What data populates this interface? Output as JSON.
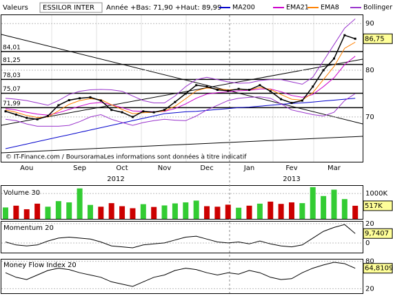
{
  "chart_data": [
    {
      "type": "line",
      "header": "Valeurs",
      "instrument": "ESSILOR INTER",
      "range_text": "Année +Bas: 71,90 +Haut: 89,99",
      "source": "© IT-Finance.com / BoursoramaLes informations sont données à titre indicatif",
      "year_labels": [
        "2012",
        "2013"
      ],
      "categories": [
        null,
        null,
        "Aou",
        null,
        null,
        null,
        null,
        "Sep",
        null,
        null,
        null,
        "Oct",
        null,
        null,
        null,
        "Nov",
        null,
        null,
        null,
        "Dec",
        null,
        null,
        null,
        "Jan",
        null,
        null,
        null,
        "Fev",
        null,
        null,
        null,
        "Mar",
        null,
        null
      ],
      "price": {
        "color": "#000000",
        "values": [
          71.2,
          70.5,
          69.8,
          69.5,
          70.2,
          72.5,
          73.6,
          74.0,
          74.2,
          73.5,
          71.5,
          71.0,
          70.0,
          71.2,
          71.0,
          71.5,
          73.2,
          75.0,
          76.8,
          76.5,
          75.8,
          75.6,
          76.0,
          75.8,
          76.8,
          75.5,
          73.8,
          73.0,
          73.5,
          76.5,
          80.0,
          82.5,
          87.5,
          86.75
        ]
      },
      "series": [
        {
          "name": "MA200",
          "color": "#0000cc",
          "values": [
            63.2,
            63.7,
            64.2,
            64.7,
            65.2,
            65.7,
            66.2,
            66.7,
            67.2,
            67.7,
            68.2,
            68.7,
            69.2,
            69.7,
            70.2,
            70.7,
            70.9,
            71.1,
            71.2,
            71.4,
            71.6,
            71.8,
            72.0,
            72.1,
            72.3,
            72.5,
            72.7,
            72.9,
            73.0,
            73.2,
            73.4,
            73.6,
            73.8,
            74.0
          ]
        },
        {
          "name": "EMA21",
          "color": "#cc00cc",
          "values": [
            71.8,
            71.5,
            71.0,
            70.6,
            70.4,
            70.9,
            71.6,
            72.3,
            72.9,
            73.1,
            72.6,
            72.0,
            71.3,
            71.2,
            71.1,
            71.2,
            71.8,
            72.8,
            74.0,
            74.9,
            75.2,
            75.4,
            75.6,
            75.7,
            76.0,
            76.0,
            75.4,
            74.6,
            74.2,
            74.8,
            76.5,
            78.4,
            81.2,
            83.0
          ]
        },
        {
          "name": "EMA8",
          "color": "#ff8000",
          "values": [
            71.5,
            71.0,
            70.3,
            69.9,
            70.0,
            71.3,
            72.7,
            73.5,
            73.9,
            73.7,
            72.6,
            71.6,
            70.7,
            70.9,
            71.0,
            71.3,
            72.3,
            73.9,
            75.6,
            76.2,
            76.0,
            75.8,
            75.9,
            75.8,
            76.3,
            75.9,
            74.8,
            73.8,
            73.6,
            75.2,
            78.0,
            80.8,
            84.7,
            86.0
          ]
        },
        {
          "name": "Bollinger 20",
          "color": "#9933cc",
          "upper": [
            74.0,
            73.8,
            73.5,
            73.0,
            72.5,
            73.5,
            74.8,
            75.5,
            75.8,
            75.9,
            75.8,
            75.5,
            74.5,
            73.5,
            73.0,
            73.0,
            74.5,
            76.5,
            78.0,
            78.5,
            78.0,
            77.5,
            77.2,
            77.3,
            77.8,
            78.0,
            78.0,
            77.5,
            77.0,
            78.5,
            82.0,
            85.5,
            89.0,
            91.0
          ],
          "lower": [
            69.5,
            69.2,
            68.5,
            68.0,
            68.0,
            68.0,
            68.2,
            69.0,
            70.0,
            70.5,
            69.5,
            68.8,
            68.2,
            68.8,
            69.2,
            69.5,
            69.3,
            69.2,
            70.2,
            71.5,
            72.5,
            73.5,
            74.0,
            74.2,
            74.3,
            74.0,
            72.8,
            71.5,
            71.0,
            70.5,
            70.2,
            71.0,
            73.5,
            75.0
          ]
        }
      ],
      "levels": [
        {
          "value": 84.01,
          "label": "84,01"
        },
        {
          "value": 81.25,
          "label": "81,25"
        },
        {
          "value": 78.03,
          "label": "78,03"
        },
        {
          "value": 75.07,
          "label": "75,07"
        },
        {
          "value": 71.99,
          "label": "71,99"
        }
      ],
      "last": {
        "value": 86.75,
        "label": "86,75"
      },
      "ylim": [
        60.4,
        91.8
      ],
      "yticks": [
        70,
        80,
        90
      ]
    },
    {
      "type": "bar",
      "title": "Volume 30",
      "values": [
        450,
        520,
        380,
        600,
        480,
        700,
        650,
        1200,
        550,
        480,
        620,
        500,
        420,
        580,
        470,
        530,
        610,
        650,
        720,
        500,
        480,
        560,
        440,
        520,
        600,
        680,
        590,
        650,
        620,
        1250,
        900,
        1150,
        780,
        517
      ],
      "up_color": "#33cc33",
      "down_color": "#cc0000",
      "last": {
        "value": 517,
        "label": "517K"
      },
      "ylim": [
        0,
        1300
      ],
      "yticks": [
        {
          "value": 1000,
          "label": "1000K"
        }
      ]
    },
    {
      "type": "line",
      "title": "Momentum 20",
      "color": "#000000",
      "values": [
        1,
        -2,
        -3,
        -2,
        2,
        5,
        6,
        5,
        4,
        1,
        -3,
        -4,
        -5,
        -2,
        -1,
        0,
        3,
        6,
        7,
        4,
        1,
        0,
        1,
        -1,
        2,
        -1,
        -3,
        -4,
        -2,
        5,
        12,
        16,
        19,
        9.7407
      ],
      "last": {
        "value": 9.7407,
        "label": "9,7407"
      },
      "ylim": [
        -10,
        22
      ],
      "yticks": [
        0,
        20
      ]
    },
    {
      "type": "line",
      "title": "Money Flow Index 20",
      "color": "#000000",
      "values": [
        55,
        45,
        40,
        50,
        60,
        65,
        62,
        55,
        50,
        45,
        35,
        30,
        25,
        35,
        45,
        50,
        60,
        65,
        62,
        55,
        50,
        55,
        52,
        60,
        55,
        45,
        40,
        42,
        55,
        65,
        72,
        78,
        75,
        64.8109
      ],
      "last": {
        "value": 64.8109,
        "label": "64,8109"
      },
      "ylim": [
        10,
        84
      ],
      "yticks": [
        20,
        80
      ]
    }
  ]
}
